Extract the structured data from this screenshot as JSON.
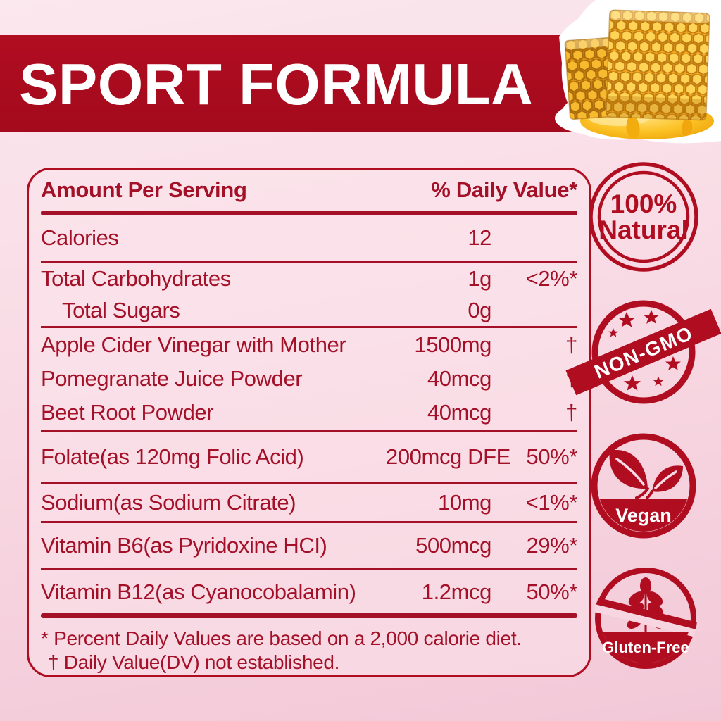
{
  "banner": {
    "title": "SPORT FORMULA"
  },
  "table": {
    "header": {
      "amount_col": "Amount Per Serving",
      "dv_col": "% Daily Value*"
    },
    "rows": [
      {
        "label": "Calories",
        "amount": "12",
        "dv": "",
        "indent": false
      },
      {
        "label": "Total Carbohydrates",
        "amount": "1g",
        "dv": "<2%*",
        "indent": false
      },
      {
        "label": "Total Sugars",
        "amount": "0g",
        "dv": "",
        "indent": true
      },
      {
        "label": "Apple Cider Vinegar with Mother",
        "amount": "1500mg",
        "dv": "†",
        "indent": false
      },
      {
        "label": "Pomegranate Juice Powder",
        "amount": "40mcg",
        "dv": "†",
        "indent": false
      },
      {
        "label": "Beet Root Powder",
        "amount": "40mcg",
        "dv": "†",
        "indent": false
      },
      {
        "label": "Folate(as 120mg Folic Acid)",
        "amount": "200mcg DFE",
        "dv": "50%*",
        "indent": false
      },
      {
        "label": "Sodium(as Sodium Citrate)",
        "amount": "10mg",
        "dv": "<1%*",
        "indent": false
      },
      {
        "label": "Vitamin B6(as Pyridoxine HCI)",
        "amount": "500mcg",
        "dv": "29%*",
        "indent": false
      },
      {
        "label": "Vitamin B12(as Cyanocobalamin)",
        "amount": "1.2mcg",
        "dv": "50%*",
        "indent": false
      }
    ],
    "footnotes": [
      "* Percent Daily Values are based on a 2,000 calorie diet.",
      "†  Daily Value(DV) not established."
    ]
  },
  "badges": {
    "natural": {
      "line1": "100%",
      "line2": "Natural"
    },
    "non_gmo": {
      "label": "NON-GMO"
    },
    "vegan": {
      "label": "Vegan"
    },
    "gluten_free": {
      "label": "Gluten-Free"
    }
  },
  "colors": {
    "primary_red": "#b10d21",
    "text_red": "#a31028",
    "background_pink": "#f7d5e1",
    "banner_text": "#ffffff",
    "honey_gold": "#f5b31a"
  }
}
